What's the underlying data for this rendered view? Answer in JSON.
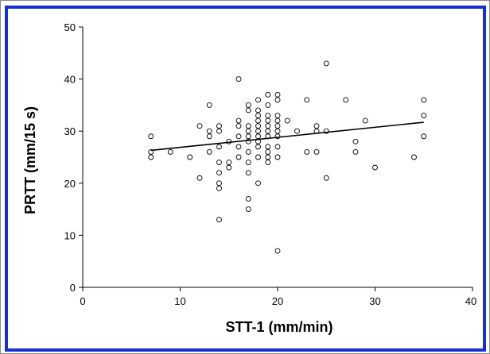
{
  "chart_data": {
    "type": "scatter",
    "title": "",
    "xlabel": "STT-1 (mm/min)",
    "ylabel": "PRTT (mm/15 s)",
    "xlim": [
      0,
      40
    ],
    "ylim": [
      0,
      50
    ],
    "xticks": [
      0,
      10,
      20,
      30,
      40
    ],
    "yticks": [
      0,
      10,
      20,
      30,
      40,
      50
    ],
    "grid": false,
    "legend": "none",
    "marker": "open-circle",
    "colors": {
      "frame": "#1630d6",
      "outer_border": "#8c8c8c",
      "marks": "#000000"
    },
    "trendline": {
      "x": [
        7,
        35
      ],
      "y": [
        26.3,
        31.7
      ]
    },
    "points": [
      [
        7,
        29
      ],
      [
        7,
        26
      ],
      [
        7,
        25
      ],
      [
        9,
        26
      ],
      [
        11,
        25
      ],
      [
        12,
        31
      ],
      [
        12,
        21
      ],
      [
        13,
        35
      ],
      [
        13,
        30
      ],
      [
        13,
        29
      ],
      [
        13,
        26
      ],
      [
        14,
        31
      ],
      [
        14,
        30
      ],
      [
        14,
        27
      ],
      [
        14,
        24
      ],
      [
        14,
        22
      ],
      [
        14,
        20
      ],
      [
        14,
        19
      ],
      [
        14,
        13
      ],
      [
        15,
        28
      ],
      [
        15,
        24
      ],
      [
        15,
        23
      ],
      [
        16,
        40
      ],
      [
        16,
        32
      ],
      [
        16,
        31
      ],
      [
        16,
        29
      ],
      [
        16,
        27
      ],
      [
        16,
        25
      ],
      [
        17,
        35
      ],
      [
        17,
        34
      ],
      [
        17,
        31
      ],
      [
        17,
        30
      ],
      [
        17,
        29
      ],
      [
        17,
        28
      ],
      [
        17,
        26
      ],
      [
        17,
        24
      ],
      [
        17,
        22
      ],
      [
        17,
        17
      ],
      [
        17,
        15
      ],
      [
        18,
        36
      ],
      [
        18,
        34
      ],
      [
        18,
        33
      ],
      [
        18,
        32
      ],
      [
        18,
        31
      ],
      [
        18,
        30
      ],
      [
        18,
        29
      ],
      [
        18,
        28
      ],
      [
        18,
        27
      ],
      [
        18,
        25
      ],
      [
        18,
        20
      ],
      [
        19,
        37
      ],
      [
        19,
        35
      ],
      [
        19,
        33
      ],
      [
        19,
        32
      ],
      [
        19,
        31
      ],
      [
        19,
        30
      ],
      [
        19,
        29
      ],
      [
        19,
        27
      ],
      [
        19,
        26
      ],
      [
        19,
        25
      ],
      [
        19,
        24
      ],
      [
        20,
        37
      ],
      [
        20,
        36
      ],
      [
        20,
        33
      ],
      [
        20,
        32
      ],
      [
        20,
        31
      ],
      [
        20,
        30
      ],
      [
        20,
        29
      ],
      [
        20,
        27
      ],
      [
        20,
        25
      ],
      [
        20,
        7
      ],
      [
        21,
        32
      ],
      [
        22,
        30
      ],
      [
        23,
        36
      ],
      [
        23,
        26
      ],
      [
        24,
        31
      ],
      [
        24,
        30
      ],
      [
        24,
        26
      ],
      [
        25,
        43
      ],
      [
        25,
        30
      ],
      [
        25,
        21
      ],
      [
        27,
        36
      ],
      [
        28,
        28
      ],
      [
        28,
        26
      ],
      [
        29,
        32
      ],
      [
        30,
        23
      ],
      [
        34,
        25
      ],
      [
        35,
        36
      ],
      [
        35,
        33
      ],
      [
        35,
        29
      ]
    ]
  }
}
